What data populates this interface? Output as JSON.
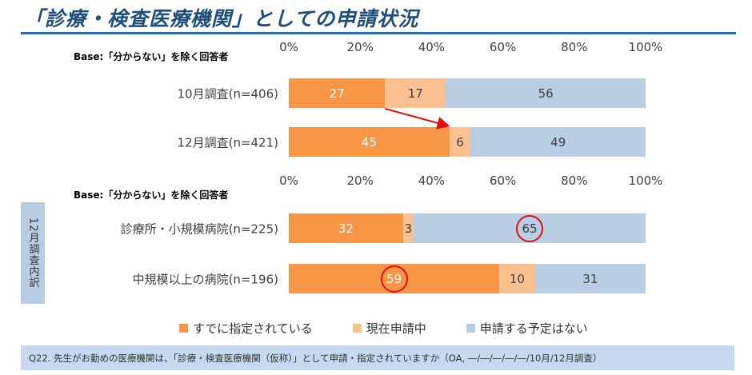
{
  "title": "「診療・検査医療機関」としての申請状況",
  "footer": "Q22. 先生がお勤めの医療機関は、「診療・検査医療機関（仮称）」として申請・指定されていますか（OA, ―/―/―/―/―/10月/12月調査）",
  "side_label": "12月調査内訳",
  "colors": {
    "designated": "#f79646",
    "applying": "#fac090",
    "not_planned": "#b9cde5",
    "title": "#1f4e79",
    "highlight": "#e01010"
  },
  "chart_data": [
    {
      "type": "bar",
      "orientation": "horizontal",
      "stacked": true,
      "base_label": "Base:「分からない」を除く回答者",
      "xlim": [
        0,
        100
      ],
      "ticks": [
        "0%",
        "20%",
        "40%",
        "60%",
        "80%",
        "100%"
      ],
      "categories": [
        "10月調査(n=406)",
        "12月調査(n=421)"
      ],
      "series": [
        {
          "name": "すでに指定されている",
          "values": [
            27,
            45
          ]
        },
        {
          "name": "現在申請中",
          "values": [
            17,
            6
          ]
        },
        {
          "name": "申請する予定はない",
          "values": [
            56,
            49
          ]
        }
      ],
      "annotations": [
        "arrow from 27 (10月) to 45 (12月)"
      ]
    },
    {
      "type": "bar",
      "orientation": "horizontal",
      "stacked": true,
      "base_label": "Base:「分からない」を除く回答者",
      "xlim": [
        0,
        100
      ],
      "ticks": [
        "0%",
        "20%",
        "40%",
        "60%",
        "80%",
        "100%"
      ],
      "categories": [
        "診療所・小規模病院(n=225)",
        "中規模以上の病院(n=196)"
      ],
      "series": [
        {
          "name": "すでに指定されている",
          "values": [
            32,
            59
          ]
        },
        {
          "name": "現在申請中",
          "values": [
            3,
            10
          ]
        },
        {
          "name": "申請する予定はない",
          "values": [
            65,
            31
          ]
        }
      ],
      "annotations": [
        "circled 65",
        "circled 59"
      ]
    }
  ],
  "legend": [
    "すでに指定されている",
    "現在申請中",
    "申請する予定はない"
  ]
}
